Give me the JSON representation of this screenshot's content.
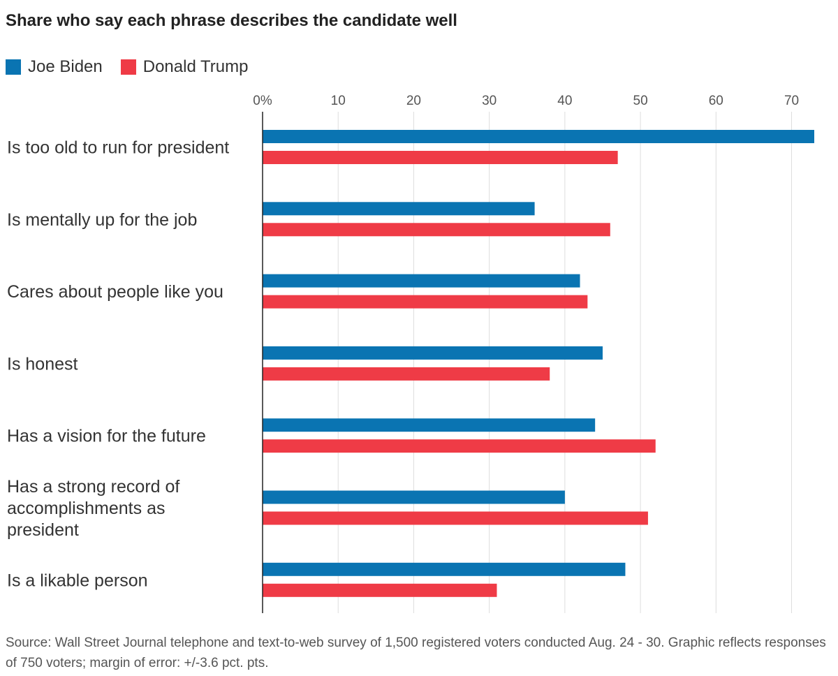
{
  "chart_data": {
    "type": "bar",
    "orientation": "horizontal",
    "title": "Share who say each phrase describes the candidate well",
    "categories": [
      "Is too old to run for president",
      "Is mentally up for the job",
      "Cares about people like you",
      "Is honest",
      "Has a vision for the future",
      "Has a strong record of accomplishments as president",
      "Is a likable person"
    ],
    "category_lines": [
      [
        "Is too old to run for president"
      ],
      [
        "Is mentally up for the job"
      ],
      [
        "Cares about people like you"
      ],
      [
        "Is honest"
      ],
      [
        "Has a vision for the future"
      ],
      [
        "Has a strong record of",
        "accomplishments as",
        "president"
      ],
      [
        "Is a likable person"
      ]
    ],
    "series": [
      {
        "name": "Joe Biden",
        "color": "#0a74b2",
        "values": [
          73,
          36,
          42,
          45,
          44,
          40,
          48
        ]
      },
      {
        "name": "Donald Trump",
        "color": "#ef3b46",
        "values": [
          47,
          46,
          43,
          38,
          52,
          51,
          31
        ]
      }
    ],
    "x_ticks": [
      0,
      10,
      20,
      30,
      40,
      50,
      60,
      70
    ],
    "x_tick_labels": [
      "0%",
      "10",
      "20",
      "30",
      "40",
      "50",
      "60",
      "70"
    ],
    "xlim": [
      0,
      73
    ],
    "xlabel": "",
    "ylabel": "",
    "grid": true,
    "legend_position": "top-left",
    "source": "Source: Wall Street Journal telephone and text-to-web survey of 1,500 registered voters conducted Aug. 24 - 30. Graphic reflects responses of 750 voters; margin of error: +/-3.6 pct. pts."
  }
}
